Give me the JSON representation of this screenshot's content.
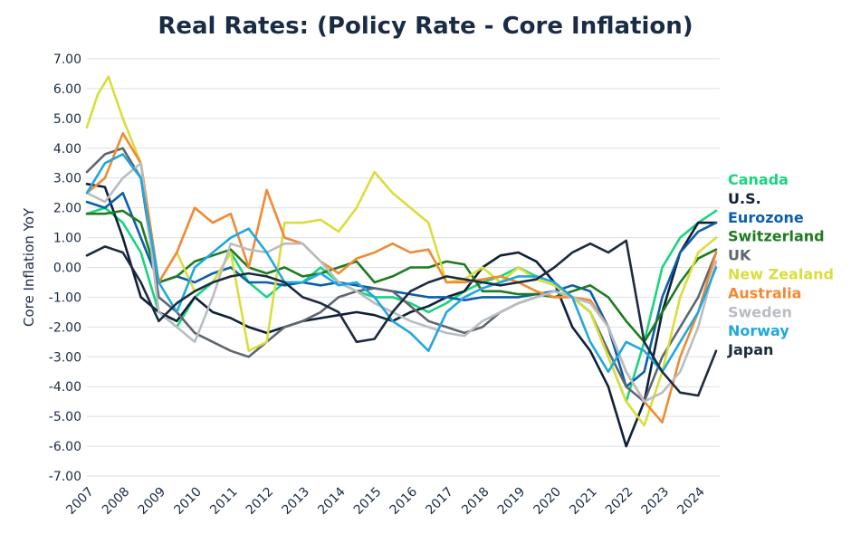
{
  "chart_data": {
    "type": "line",
    "title": "Real Rates: (Policy Rate - Core Inflation)",
    "xlabel": "",
    "ylabel": "Core Inflation YoY",
    "xlim": [
      2007,
      2024.6
    ],
    "ylim": [
      -7,
      7
    ],
    "x_ticks": [
      "2007",
      "2008",
      "2009",
      "2010",
      "2011",
      "2012",
      "2013",
      "2014",
      "2015",
      "2016",
      "2017",
      "2018",
      "2019",
      "2020",
      "2021",
      "2022",
      "2023",
      "2024"
    ],
    "y_ticks": [
      "7.00",
      "6.00",
      "5.00",
      "4.00",
      "3.00",
      "2.00",
      "1.00",
      "0.00",
      "-1.00",
      "-2.00",
      "-3.00",
      "-4.00",
      "-5.00",
      "-6.00",
      "-7.00"
    ],
    "grid": true,
    "legend_position": "right",
    "series": [
      {
        "name": "Canada",
        "color": "#19d47f",
        "x": [
          2007,
          2007.5,
          2008,
          2008.5,
          2009,
          2009.5,
          2010,
          2010.5,
          2011,
          2011.5,
          2012,
          2012.5,
          2013,
          2013.5,
          2014,
          2014.5,
          2015,
          2015.5,
          2016,
          2016.5,
          2017,
          2017.5,
          2018,
          2018.5,
          2019,
          2019.5,
          2020,
          2020.5,
          2021,
          2021.5,
          2022,
          2022.5,
          2023,
          2023.5,
          2024,
          2024.5
        ],
        "y": [
          1.8,
          2.0,
          1.5,
          0.5,
          -1.5,
          -2.0,
          -1.0,
          -0.5,
          0.5,
          -0.5,
          -1.0,
          -0.5,
          -0.5,
          0.0,
          -0.5,
          -0.8,
          -1.0,
          -1.0,
          -1.2,
          -1.5,
          -1.2,
          -0.8,
          -0.5,
          -0.3,
          0.0,
          -0.3,
          -0.5,
          -1.0,
          -1.5,
          -3.0,
          -4.5,
          -2.5,
          0.0,
          1.0,
          1.5,
          1.9
        ]
      },
      {
        "name": "U.S.",
        "color": "#0f2038",
        "x": [
          2007,
          2007.5,
          2008,
          2008.5,
          2009,
          2009.5,
          2010,
          2010.5,
          2011,
          2011.5,
          2012,
          2012.5,
          2013,
          2013.5,
          2014,
          2014.5,
          2015,
          2015.5,
          2016,
          2016.5,
          2017,
          2017.5,
          2018,
          2018.5,
          2019,
          2019.5,
          2020,
          2020.5,
          2021,
          2021.5,
          2022,
          2022.5,
          2023,
          2023.5,
          2024,
          2024.5
        ],
        "y": [
          2.8,
          2.7,
          1.0,
          -1.0,
          -1.5,
          -1.8,
          -1.0,
          -1.5,
          -1.7,
          -2.0,
          -2.2,
          -2.0,
          -1.8,
          -1.7,
          -1.6,
          -1.5,
          -1.6,
          -1.8,
          -1.5,
          -1.3,
          -1.0,
          -0.8,
          0.0,
          0.4,
          0.5,
          0.2,
          -0.5,
          -2.0,
          -2.8,
          -4.0,
          -6.0,
          -4.5,
          -1.5,
          0.5,
          1.5,
          1.5
        ]
      },
      {
        "name": "Eurozone",
        "color": "#0b5fa8",
        "x": [
          2007,
          2007.5,
          2008,
          2008.5,
          2009,
          2009.5,
          2010,
          2010.5,
          2011,
          2011.5,
          2012,
          2012.5,
          2013,
          2013.5,
          2014,
          2014.5,
          2015,
          2015.5,
          2016,
          2016.5,
          2017,
          2017.5,
          2018,
          2018.5,
          2019,
          2019.5,
          2020,
          2020.5,
          2021,
          2021.5,
          2022,
          2022.5,
          2023,
          2023.5,
          2024,
          2024.5
        ],
        "y": [
          2.2,
          2.0,
          2.5,
          1.0,
          -0.5,
          -0.3,
          -0.5,
          -0.2,
          0.0,
          -0.5,
          -0.5,
          -0.6,
          -0.5,
          -0.6,
          -0.5,
          -0.6,
          -0.7,
          -0.8,
          -0.9,
          -1.0,
          -1.0,
          -1.1,
          -1.0,
          -1.0,
          -1.0,
          -0.9,
          -0.8,
          -0.6,
          -0.8,
          -2.0,
          -4.0,
          -3.5,
          -1.0,
          0.5,
          1.2,
          1.5
        ]
      },
      {
        "name": "Switzerland",
        "color": "#1e7b1e",
        "x": [
          2007,
          2007.5,
          2008,
          2008.5,
          2009,
          2009.5,
          2010,
          2010.5,
          2011,
          2011.5,
          2012,
          2012.5,
          2013,
          2013.5,
          2014,
          2014.5,
          2015,
          2015.5,
          2016,
          2016.5,
          2017,
          2017.5,
          2018,
          2018.5,
          2019,
          2019.5,
          2020,
          2020.5,
          2021,
          2021.5,
          2022,
          2022.5,
          2023,
          2023.5,
          2024,
          2024.5
        ],
        "y": [
          1.8,
          1.8,
          1.9,
          1.5,
          -0.5,
          -0.3,
          0.2,
          0.4,
          0.6,
          0.0,
          -0.2,
          0.0,
          -0.3,
          -0.2,
          0.0,
          0.2,
          -0.5,
          -0.3,
          0.0,
          0.0,
          0.2,
          0.1,
          -0.8,
          -0.8,
          -0.9,
          -0.9,
          -1.0,
          -0.8,
          -0.6,
          -1.0,
          -1.8,
          -2.5,
          -1.5,
          -0.5,
          0.3,
          0.6
        ]
      },
      {
        "name": "UK",
        "color": "#5f6670",
        "x": [
          2007,
          2007.5,
          2008,
          2008.5,
          2009,
          2009.5,
          2010,
          2010.5,
          2011,
          2011.5,
          2012,
          2012.5,
          2013,
          2013.5,
          2014,
          2014.5,
          2015,
          2015.5,
          2016,
          2016.5,
          2017,
          2017.5,
          2018,
          2018.5,
          2019,
          2019.5,
          2020,
          2020.5,
          2021,
          2021.5,
          2022,
          2022.5,
          2023,
          2023.5,
          2024,
          2024.5
        ],
        "y": [
          3.2,
          3.8,
          4.0,
          3.0,
          -1.0,
          -1.5,
          -2.2,
          -2.5,
          -2.8,
          -3.0,
          -2.5,
          -2.0,
          -1.8,
          -1.5,
          -1.0,
          -0.8,
          -0.7,
          -0.8,
          -1.3,
          -1.8,
          -2.0,
          -2.2,
          -2.0,
          -1.5,
          -1.2,
          -1.0,
          -0.8,
          -1.0,
          -1.5,
          -2.8,
          -4.0,
          -4.5,
          -3.0,
          -2.0,
          -1.0,
          0.5
        ]
      },
      {
        "name": "New Zealand",
        "color": "#d9de3a",
        "x": [
          2007,
          2007.3,
          2007.6,
          2008,
          2008.5,
          2009,
          2009.5,
          2010,
          2010.5,
          2011,
          2011.5,
          2012,
          2012.5,
          2013,
          2013.5,
          2014,
          2014.5,
          2015,
          2015.5,
          2016,
          2016.5,
          2017,
          2017.5,
          2018,
          2018.5,
          2019,
          2019.5,
          2020,
          2020.5,
          2021,
          2021.5,
          2022,
          2022.5,
          2023,
          2023.5,
          2024,
          2024.5
        ],
        "y": [
          4.7,
          5.8,
          6.4,
          5.0,
          3.5,
          -0.5,
          0.5,
          -0.8,
          -0.5,
          0.5,
          -2.8,
          -2.5,
          1.5,
          1.5,
          1.6,
          1.2,
          2.0,
          3.2,
          2.5,
          2.0,
          1.5,
          -0.5,
          -0.4,
          0.0,
          -0.5,
          0.0,
          -0.4,
          -0.6,
          -1.0,
          -1.5,
          -3.0,
          -4.5,
          -5.3,
          -3.5,
          -1.0,
          0.5,
          1.0
        ]
      },
      {
        "name": "Australia",
        "color": "#f08a33",
        "x": [
          2007,
          2007.5,
          2008,
          2008.5,
          2009,
          2009.5,
          2010,
          2010.5,
          2011,
          2011.5,
          2012,
          2012.5,
          2013,
          2013.5,
          2014,
          2014.5,
          2015,
          2015.5,
          2016,
          2016.5,
          2017,
          2017.5,
          2018,
          2018.5,
          2019,
          2019.5,
          2020,
          2020.5,
          2021,
          2021.5,
          2022,
          2022.5,
          2023,
          2023.5,
          2024,
          2024.5
        ],
        "y": [
          2.5,
          3.0,
          4.5,
          3.5,
          -0.5,
          0.5,
          2.0,
          1.5,
          1.8,
          0.0,
          2.6,
          1.0,
          0.8,
          0.2,
          -0.2,
          0.3,
          0.5,
          0.8,
          0.5,
          0.6,
          -0.5,
          -0.5,
          -0.4,
          -0.3,
          -0.5,
          -0.8,
          -1.0,
          -1.0,
          -1.1,
          -2.0,
          -3.5,
          -4.5,
          -5.2,
          -3.0,
          -1.5,
          0.5
        ]
      },
      {
        "name": "Sweden",
        "color": "#b9bdc2",
        "x": [
          2007,
          2007.5,
          2008,
          2008.5,
          2009,
          2009.5,
          2010,
          2010.5,
          2011,
          2011.5,
          2012,
          2012.5,
          2013,
          2013.5,
          2014,
          2014.5,
          2015,
          2015.5,
          2016,
          2016.5,
          2017,
          2017.5,
          2018,
          2018.5,
          2019,
          2019.5,
          2020,
          2020.5,
          2021,
          2021.5,
          2022,
          2022.5,
          2023,
          2023.5,
          2024,
          2024.5
        ],
        "y": [
          2.5,
          2.2,
          3.0,
          3.5,
          -1.5,
          -2.0,
          -2.5,
          -1.0,
          0.8,
          0.6,
          0.5,
          0.8,
          0.8,
          0.2,
          -0.5,
          -0.8,
          -1.2,
          -1.5,
          -1.8,
          -2.0,
          -2.2,
          -2.3,
          -1.8,
          -1.5,
          -1.2,
          -1.0,
          -0.8,
          -1.0,
          -1.2,
          -2.0,
          -3.5,
          -4.5,
          -4.2,
          -3.5,
          -2.0,
          0.2
        ]
      },
      {
        "name": "Norway",
        "color": "#21a7e0",
        "x": [
          2007,
          2007.5,
          2008,
          2008.5,
          2009,
          2009.5,
          2010,
          2010.5,
          2011,
          2011.5,
          2012,
          2012.5,
          2013,
          2013.5,
          2014,
          2014.5,
          2015,
          2015.5,
          2016,
          2016.5,
          2017,
          2017.5,
          2018,
          2018.5,
          2019,
          2019.5,
          2020,
          2020.5,
          2021,
          2021.5,
          2022,
          2022.5,
          2023,
          2023.5,
          2024,
          2024.5
        ],
        "y": [
          2.5,
          3.5,
          3.8,
          3.0,
          -0.5,
          -1.5,
          0.0,
          0.5,
          1.0,
          1.3,
          0.5,
          -0.5,
          -0.5,
          -0.2,
          -0.6,
          -0.5,
          -1.0,
          -1.8,
          -2.2,
          -2.8,
          -1.5,
          -1.0,
          -0.7,
          -0.5,
          -0.3,
          -0.3,
          -0.5,
          -1.0,
          -2.5,
          -3.5,
          -2.5,
          -2.8,
          -3.5,
          -2.5,
          -1.5,
          0.0
        ]
      },
      {
        "name": "Japan",
        "color": "#1c2b3f",
        "x": [
          2007,
          2007.5,
          2008,
          2008.5,
          2009,
          2009.5,
          2010,
          2010.5,
          2011,
          2011.5,
          2012,
          2012.5,
          2013,
          2013.5,
          2014,
          2014.5,
          2015,
          2015.5,
          2016,
          2016.5,
          2017,
          2017.5,
          2018,
          2018.5,
          2019,
          2019.5,
          2020,
          2020.5,
          2021,
          2021.5,
          2022,
          2022.5,
          2023,
          2023.5,
          2024,
          2024.5
        ],
        "y": [
          0.4,
          0.7,
          0.5,
          -0.5,
          -1.8,
          -1.2,
          -0.8,
          -0.5,
          -0.3,
          -0.2,
          -0.3,
          -0.5,
          -1.0,
          -1.2,
          -1.5,
          -2.5,
          -2.4,
          -1.5,
          -0.8,
          -0.5,
          -0.3,
          -0.4,
          -0.5,
          -0.6,
          -0.5,
          -0.4,
          0.0,
          0.5,
          0.8,
          0.5,
          0.9,
          -2.5,
          -3.5,
          -4.2,
          -4.3,
          -2.8
        ]
      }
    ]
  }
}
